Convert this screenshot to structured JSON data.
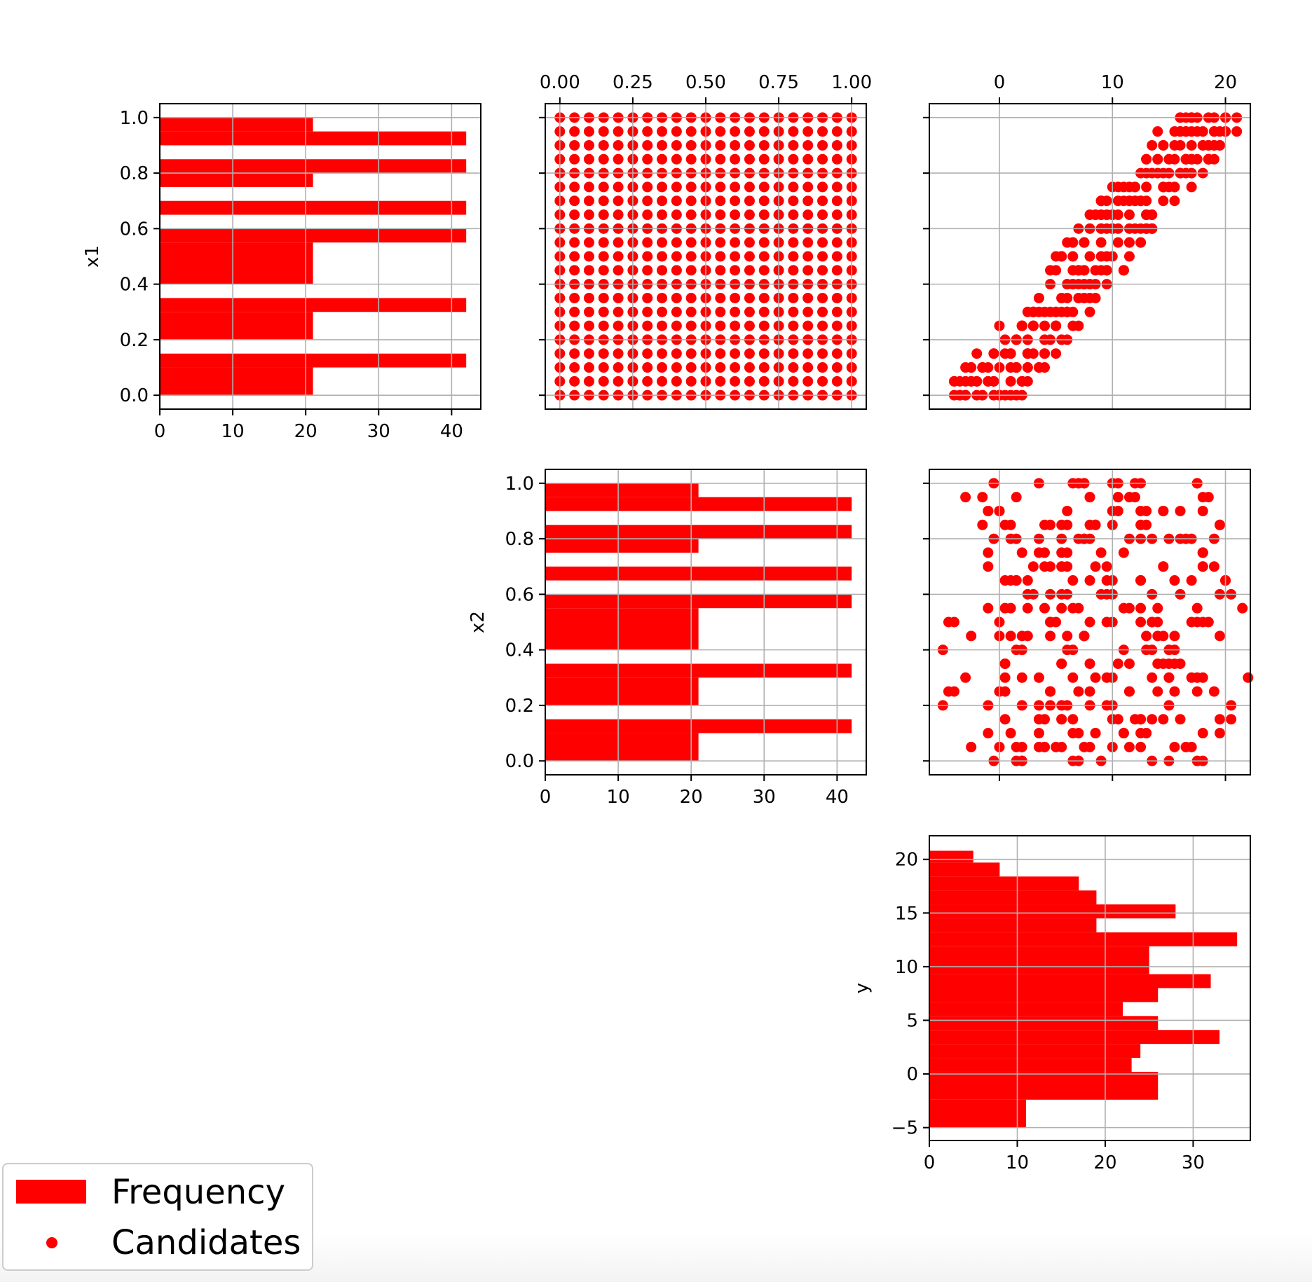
{
  "colors": {
    "marker": "#ff0000",
    "grid": "#b0b0b0",
    "axis": "#000000"
  },
  "legend": {
    "frequency_label": "Frequency",
    "candidates_label": "Candidates",
    "placement": "bottom-left"
  },
  "chart_data": [
    {
      "id": "hist_x1",
      "type": "bar",
      "orientation": "horizontal",
      "ylabel": "x1",
      "xlim": [
        0,
        44
      ],
      "ylim": [
        -0.05,
        1.05
      ],
      "xticks": [
        "0",
        "10",
        "20",
        "30",
        "40"
      ],
      "yticks": [
        "0.0",
        "0.2",
        "0.4",
        "0.6",
        "0.8",
        "1.0"
      ],
      "xtick_values": [
        0,
        10,
        20,
        30,
        40
      ],
      "ytick_values": [
        0,
        0.2,
        0.4,
        0.6,
        0.8,
        1.0
      ],
      "bins": [
        {
          "from": 0.0,
          "to": 0.1,
          "value": 21
        },
        {
          "from": 0.1,
          "to": 0.15,
          "value": 42
        },
        {
          "from": 0.2,
          "to": 0.3,
          "value": 21
        },
        {
          "from": 0.3,
          "to": 0.35,
          "value": 42
        },
        {
          "from": 0.4,
          "to": 0.55,
          "value": 21
        },
        {
          "from": 0.55,
          "to": 0.6,
          "value": 42
        },
        {
          "from": 0.65,
          "to": 0.7,
          "value": 42
        },
        {
          "from": 0.75,
          "to": 0.8,
          "value": 21
        },
        {
          "from": 0.8,
          "to": 0.85,
          "value": 42
        },
        {
          "from": 0.9,
          "to": 0.95,
          "value": 42
        },
        {
          "from": 0.95,
          "to": 1.0,
          "value": 21
        }
      ],
      "grid": true
    },
    {
      "id": "scatter_x2_x1",
      "type": "scatter",
      "xticks_top": [
        "0.00",
        "0.25",
        "0.50",
        "0.75",
        "1.00"
      ],
      "xtick_values": [
        0,
        0.25,
        0.5,
        0.75,
        1.0
      ],
      "xlim": [
        -0.05,
        1.05
      ],
      "ylim": [
        -0.05,
        1.05
      ],
      "ytick_values": [
        0,
        0.2,
        0.4,
        0.6,
        0.8,
        1.0
      ],
      "grid_points": {
        "x_step": 0.05,
        "y_step": 0.05,
        "x_range": [
          0,
          1
        ],
        "y_range": [
          0,
          1
        ]
      },
      "grid": true
    },
    {
      "id": "scatter_y_x1",
      "type": "scatter",
      "xticks_top": [
        "0",
        "10",
        "20"
      ],
      "xtick_values": [
        0,
        10,
        20
      ],
      "xlim": [
        -6.2,
        22.2
      ],
      "ylim": [
        -0.05,
        1.05
      ],
      "ytick_values": [
        0,
        0.2,
        0.4,
        0.6,
        0.8,
        1.0
      ],
      "relation": "y ≈ 20*x1 − 5 + spread(0..7)",
      "grid": true
    },
    {
      "id": "hist_x2",
      "type": "bar",
      "orientation": "horizontal",
      "ylabel": "x2",
      "xlim": [
        0,
        44
      ],
      "ylim": [
        -0.05,
        1.05
      ],
      "xticks": [
        "0",
        "10",
        "20",
        "30",
        "40"
      ],
      "yticks": [
        "0.0",
        "0.2",
        "0.4",
        "0.6",
        "0.8",
        "1.0"
      ],
      "xtick_values": [
        0,
        10,
        20,
        30,
        40
      ],
      "ytick_values": [
        0,
        0.2,
        0.4,
        0.6,
        0.8,
        1.0
      ],
      "bins": [
        {
          "from": 0.0,
          "to": 0.1,
          "value": 21
        },
        {
          "from": 0.1,
          "to": 0.15,
          "value": 42
        },
        {
          "from": 0.2,
          "to": 0.3,
          "value": 21
        },
        {
          "from": 0.3,
          "to": 0.35,
          "value": 42
        },
        {
          "from": 0.4,
          "to": 0.55,
          "value": 21
        },
        {
          "from": 0.55,
          "to": 0.6,
          "value": 42
        },
        {
          "from": 0.65,
          "to": 0.7,
          "value": 42
        },
        {
          "from": 0.75,
          "to": 0.8,
          "value": 21
        },
        {
          "from": 0.8,
          "to": 0.85,
          "value": 42
        },
        {
          "from": 0.9,
          "to": 0.95,
          "value": 42
        },
        {
          "from": 0.95,
          "to": 1.0,
          "value": 21
        }
      ],
      "grid": true
    },
    {
      "id": "scatter_y_x2",
      "type": "scatter",
      "xlim": [
        -6.2,
        22.2
      ],
      "ylim": [
        -0.05,
        1.05
      ],
      "xtick_values": [
        0,
        10,
        20
      ],
      "ytick_values": [
        0,
        0.2,
        0.4,
        0.6,
        0.8,
        1.0
      ],
      "relation": "y ≈ 20*x1 − 5 + 5*x2*... (diagonal band vs x2 appears scattered, shifting left as x2 increases)",
      "grid": true
    },
    {
      "id": "hist_y",
      "type": "bar",
      "orientation": "horizontal",
      "ylabel": "y",
      "xlim": [
        0,
        36.5
      ],
      "ylim": [
        -6.2,
        22.2
      ],
      "xticks": [
        "0",
        "10",
        "20",
        "30"
      ],
      "yticks": [
        "−5",
        "0",
        "5",
        "10",
        "15",
        "20"
      ],
      "xtick_values": [
        0,
        10,
        20,
        30
      ],
      "ytick_values": [
        -5,
        0,
        5,
        10,
        15,
        20
      ],
      "bins": [
        {
          "from": -5.0,
          "to": -2.4,
          "value": 11
        },
        {
          "from": -2.4,
          "to": 0.2,
          "value": 26
        },
        {
          "from": 0.2,
          "to": 1.5,
          "value": 23
        },
        {
          "from": 1.5,
          "to": 2.8,
          "value": 24
        },
        {
          "from": 2.8,
          "to": 4.1,
          "value": 33
        },
        {
          "from": 4.1,
          "to": 5.4,
          "value": 26
        },
        {
          "from": 5.4,
          "to": 6.7,
          "value": 22
        },
        {
          "from": 6.7,
          "to": 8.0,
          "value": 26
        },
        {
          "from": 8.0,
          "to": 9.3,
          "value": 32
        },
        {
          "from": 9.3,
          "to": 11.9,
          "value": 25
        },
        {
          "from": 11.9,
          "to": 13.2,
          "value": 35
        },
        {
          "from": 13.2,
          "to": 14.5,
          "value": 19
        },
        {
          "from": 14.5,
          "to": 15.8,
          "value": 28
        },
        {
          "from": 15.8,
          "to": 17.1,
          "value": 19
        },
        {
          "from": 17.1,
          "to": 18.4,
          "value": 17
        },
        {
          "from": 18.4,
          "to": 19.7,
          "value": 8
        },
        {
          "from": 19.7,
          "to": 20.8,
          "value": 5
        }
      ],
      "grid": true
    }
  ]
}
